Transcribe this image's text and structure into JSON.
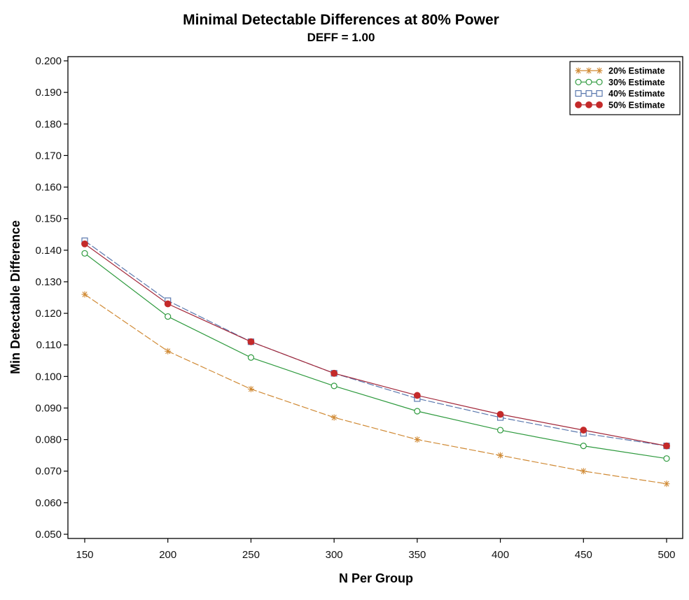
{
  "chart_data": {
    "type": "line",
    "title": "Minimal Detectable Differences at 80% Power",
    "subtitle": "DEFF = 1.00",
    "xlabel": "N Per Group",
    "ylabel": "Min Detectable Difference",
    "x": [
      150,
      200,
      250,
      300,
      350,
      400,
      450,
      500
    ],
    "x_tick_labels": [
      "150",
      "200",
      "250",
      "300",
      "350",
      "400",
      "450",
      "500"
    ],
    "y_tick_values": [
      0.05,
      0.06,
      0.07,
      0.08,
      0.09,
      0.1,
      0.11,
      0.12,
      0.13,
      0.14,
      0.15,
      0.16,
      0.17,
      0.18,
      0.19,
      0.2
    ],
    "y_tick_labels": [
      "0.050",
      "0.060",
      "0.070",
      "0.080",
      "0.090",
      "0.100",
      "0.110",
      "0.120",
      "0.130",
      "0.140",
      "0.150",
      "0.160",
      "0.170",
      "0.180",
      "0.190",
      "0.200"
    ],
    "xlim": [
      150,
      500
    ],
    "ylim": [
      0.05,
      0.2
    ],
    "grid": false,
    "legend_position": "top-right",
    "series": [
      {
        "name": "20% Estimate",
        "color": "#D08A35",
        "marker": "star",
        "dash": "dashed",
        "values": [
          0.126,
          0.108,
          0.096,
          0.087,
          0.08,
          0.075,
          0.07,
          0.066
        ]
      },
      {
        "name": "30% Estimate",
        "color": "#2E9A3E",
        "marker": "open-circle",
        "dash": "solid",
        "values": [
          0.139,
          0.119,
          0.106,
          0.097,
          0.089,
          0.083,
          0.078,
          0.074
        ]
      },
      {
        "name": "40% Estimate",
        "color": "#5A78AE",
        "marker": "open-square",
        "dash": "dashed",
        "values": [
          0.143,
          0.124,
          0.111,
          0.101,
          0.093,
          0.087,
          0.082,
          0.078
        ]
      },
      {
        "name": "50% Estimate",
        "color": "#C42A2A",
        "line_color": "#A3283A",
        "marker": "filled-circle",
        "dash": "solid",
        "values": [
          0.142,
          0.123,
          0.111,
          0.101,
          0.094,
          0.088,
          0.083,
          0.078
        ]
      }
    ]
  }
}
